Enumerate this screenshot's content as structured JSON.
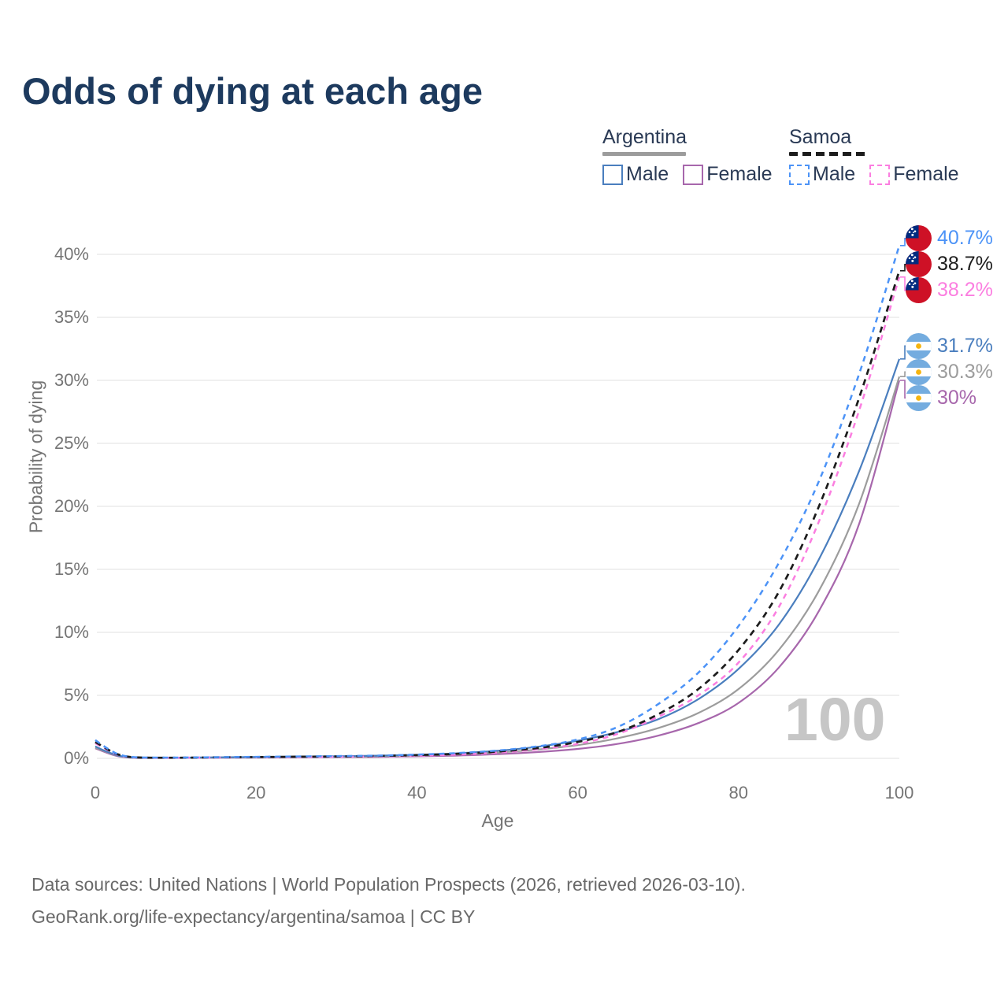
{
  "title": "Odds of dying at each age",
  "watermark": "100",
  "legend": {
    "groups": [
      {
        "country": "Argentina",
        "line_style": "solid",
        "underline_color": "#9c9c9c",
        "items": [
          {
            "label": "Male",
            "color": "#4A7EBE",
            "dashed": false
          },
          {
            "label": "Female",
            "color": "#A767AC",
            "dashed": false
          }
        ]
      },
      {
        "country": "Samoa",
        "line_style": "dashed",
        "underline_color": "#1c1c1c",
        "items": [
          {
            "label": "Male",
            "color": "#4C93F7",
            "dashed": true
          },
          {
            "label": "Female",
            "color": "#FB7EE0",
            "dashed": true
          }
        ]
      }
    ]
  },
  "footer": {
    "line1": "Data sources: United Nations | World Population Prospects (2026, retrieved 2026-03-10).",
    "line2": "GeoRank.org/life-expectancy/argentina/samoa | CC BY"
  },
  "chart_data": {
    "type": "line",
    "title": "Odds of dying at each age",
    "xlabel": "Age",
    "ylabel": "Probability of dying",
    "xlim": [
      0,
      100
    ],
    "ylim": [
      0,
      42
    ],
    "grid": "horizontal",
    "y_ticks": [
      {
        "value": 0,
        "label": "0%"
      },
      {
        "value": 5,
        "label": "5%"
      },
      {
        "value": 10,
        "label": "10%"
      },
      {
        "value": 15,
        "label": "15%"
      },
      {
        "value": 20,
        "label": "20%"
      },
      {
        "value": 25,
        "label": "25%"
      },
      {
        "value": 30,
        "label": "30%"
      },
      {
        "value": 35,
        "label": "35%"
      },
      {
        "value": 40,
        "label": "40%"
      }
    ],
    "x_ticks": [
      {
        "value": 0,
        "label": "0"
      },
      {
        "value": 20,
        "label": "20"
      },
      {
        "value": 40,
        "label": "40"
      },
      {
        "value": 60,
        "label": "60"
      },
      {
        "value": 80,
        "label": "80"
      },
      {
        "value": 100,
        "label": "100"
      }
    ],
    "x": [
      0,
      1,
      2,
      3,
      5,
      10,
      15,
      20,
      25,
      30,
      35,
      40,
      45,
      50,
      55,
      60,
      65,
      70,
      75,
      80,
      85,
      90,
      95,
      100
    ],
    "series": [
      {
        "id": "argentina-female",
        "name": "Argentina Female",
        "country": "Argentina",
        "sex": "Female",
        "color": "#A767AC",
        "dash": "",
        "width": 2.2,
        "flag": "argentina",
        "end_label": "30%",
        "values": [
          0.8,
          0.55,
          0.32,
          0.15,
          0.04,
          0.03,
          0.05,
          0.06,
          0.08,
          0.1,
          0.12,
          0.16,
          0.22,
          0.33,
          0.5,
          0.75,
          1.15,
          1.8,
          2.8,
          4.4,
          7.2,
          11.7,
          18.6,
          30.0
        ]
      },
      {
        "id": "argentina-both",
        "name": "Argentina Both sexes",
        "country": "Argentina",
        "sex": "Both",
        "color": "#9C9C9C",
        "dash": "",
        "width": 2.2,
        "flag": "argentina",
        "end_label": "30.3%",
        "values": [
          0.85,
          0.6,
          0.36,
          0.18,
          0.05,
          0.04,
          0.06,
          0.09,
          0.11,
          0.13,
          0.17,
          0.22,
          0.31,
          0.46,
          0.7,
          1.05,
          1.6,
          2.4,
          3.6,
          5.5,
          8.6,
          13.3,
          20.2,
          30.3
        ]
      },
      {
        "id": "argentina-male",
        "name": "Argentina Male",
        "country": "Argentina",
        "sex": "Male",
        "color": "#4A7EBE",
        "dash": "",
        "width": 2.2,
        "flag": "argentina",
        "end_label": "31.7%",
        "values": [
          0.95,
          0.65,
          0.4,
          0.2,
          0.06,
          0.05,
          0.08,
          0.11,
          0.14,
          0.17,
          0.21,
          0.28,
          0.4,
          0.6,
          0.92,
          1.4,
          2.1,
          3.1,
          4.7,
          7.1,
          10.6,
          15.8,
          22.8,
          31.7
        ]
      },
      {
        "id": "samoa-female",
        "name": "Samoa Female",
        "country": "Samoa",
        "sex": "Female",
        "color": "#FB7EE0",
        "dash": "7 6",
        "width": 2.5,
        "flag": "samoa",
        "end_label": "38.2%",
        "values": [
          1.2,
          0.85,
          0.5,
          0.25,
          0.07,
          0.05,
          0.06,
          0.08,
          0.1,
          0.12,
          0.15,
          0.21,
          0.3,
          0.46,
          0.72,
          1.15,
          1.95,
          3.3,
          5.0,
          7.6,
          12.0,
          18.8,
          27.6,
          38.2
        ]
      },
      {
        "id": "samoa-both",
        "name": "Samoa Both sexes",
        "country": "Samoa",
        "sex": "Both",
        "color": "#1C1C1C",
        "dash": "8 6",
        "width": 2.7,
        "flag": "samoa",
        "end_label": "38.7%",
        "values": [
          1.3,
          0.92,
          0.55,
          0.28,
          0.08,
          0.05,
          0.08,
          0.1,
          0.13,
          0.15,
          0.19,
          0.26,
          0.36,
          0.54,
          0.82,
          1.3,
          2.1,
          3.5,
          5.5,
          8.6,
          13.2,
          20.0,
          28.6,
          38.7
        ]
      },
      {
        "id": "samoa-male",
        "name": "Samoa Male",
        "country": "Samoa",
        "sex": "Male",
        "color": "#4C93F7",
        "dash": "7 6",
        "width": 2.5,
        "flag": "samoa",
        "end_label": "40.7%",
        "values": [
          1.45,
          1.0,
          0.6,
          0.3,
          0.09,
          0.06,
          0.09,
          0.12,
          0.15,
          0.18,
          0.22,
          0.3,
          0.42,
          0.62,
          0.95,
          1.5,
          2.5,
          4.3,
          6.8,
          10.5,
          15.5,
          22.0,
          30.5,
          40.7
        ]
      }
    ],
    "flag_colors": {
      "samoa_red": "#CE1126",
      "samoa_blue": "#002B7F",
      "samoa_star": "#ffffff",
      "argentina_blue": "#74ACDF",
      "argentina_white": "#ffffff",
      "argentina_sun": "#F6B40E"
    }
  }
}
